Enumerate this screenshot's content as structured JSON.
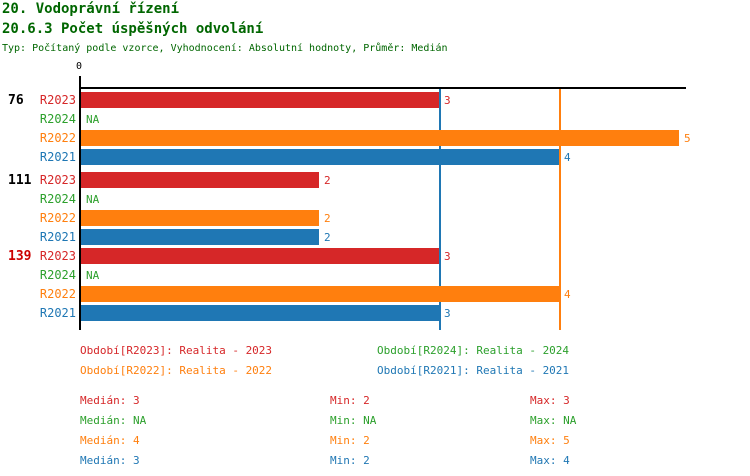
{
  "header": {
    "title": "20. Vodoprávní řízení",
    "subtitle": "20.6.3 Počet úspěšných odvolání",
    "meta": "Typ: Počítaný podle vzorce, Vyhodnocení: Absolutní hodnoty, Průměr: Medián"
  },
  "colors": {
    "title_green": "#006600",
    "axis_black": "#000000",
    "group_label_black": "#000000",
    "group_label_red": "#cc0000",
    "series": {
      "R2023": "#d62728",
      "R2024": "#2ca02c",
      "R2022": "#ff7f0e",
      "R2021": "#1f77b4"
    }
  },
  "chart_data": {
    "type": "bar",
    "orientation": "horizontal",
    "axis_origin_label": "0",
    "na_text": "NA",
    "xlim": [
      0,
      5
    ],
    "series_order": [
      "R2023",
      "R2024",
      "R2022",
      "R2021"
    ],
    "groups": [
      {
        "label": "76",
        "alert": false,
        "values": {
          "R2023": 3,
          "R2024": null,
          "R2022": 5,
          "R2021": 4
        }
      },
      {
        "label": "111",
        "alert": false,
        "values": {
          "R2023": 2,
          "R2024": null,
          "R2022": 2,
          "R2021": 2
        }
      },
      {
        "label": "139",
        "alert": true,
        "values": {
          "R2023": 3,
          "R2024": null,
          "R2022": 4,
          "R2021": 3
        }
      }
    ],
    "median_lines": [
      {
        "series": "R2021",
        "value": 3
      },
      {
        "series": "R2022",
        "value": 4
      }
    ]
  },
  "legend": [
    {
      "series": "R2023",
      "text": "Období[R2023]: Realita - 2023"
    },
    {
      "series": "R2024",
      "text": "Období[R2024]: Realita - 2024"
    },
    {
      "series": "R2022",
      "text": "Období[R2022]: Realita - 2022"
    },
    {
      "series": "R2021",
      "text": "Období[R2021]: Realita - 2021"
    }
  ],
  "stats": {
    "labels": {
      "median": "Medián",
      "min": "Min",
      "max": "Max"
    },
    "rows": [
      {
        "series": "R2023",
        "median": "3",
        "min": "2",
        "max": "3"
      },
      {
        "series": "R2024",
        "median": "NA",
        "min": "NA",
        "max": "NA"
      },
      {
        "series": "R2022",
        "median": "4",
        "min": "2",
        "max": "5"
      },
      {
        "series": "R2021",
        "median": "3",
        "min": "2",
        "max": "4"
      }
    ]
  }
}
